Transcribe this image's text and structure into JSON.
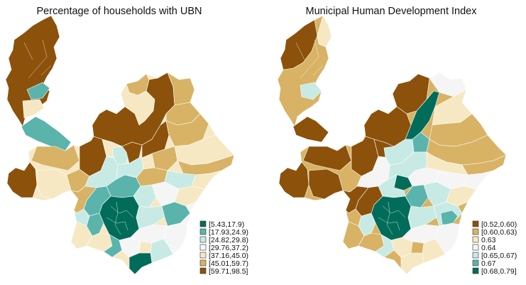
{
  "maps": [
    {
      "title": "Percentage of households with UBN",
      "legend": [
        {
          "label": "[5.43,17.9)",
          "color": "#016c59"
        },
        {
          "label": "[17.93,24.9)",
          "color": "#5ab4ac"
        },
        {
          "label": "[24.82,29.8)",
          "color": "#c7eae5"
        },
        {
          "label": "[29.76,37.2)",
          "color": "#f5f5f5"
        },
        {
          "label": "[37.16,45.0)",
          "color": "#f6e8c3"
        },
        {
          "label": "[45.01,59.7)",
          "color": "#d8b365"
        },
        {
          "label": "[59.71,98.5]",
          "color": "#8c510a"
        }
      ]
    },
    {
      "title": "Municipal Human Development Index",
      "legend": [
        {
          "label": "[0.52,0.60)",
          "color": "#8c510a"
        },
        {
          "label": "[0.60,0.63)",
          "color": "#d8b365"
        },
        {
          "label": "0.63",
          "color": "#f6e8c3"
        },
        {
          "label": "0.64",
          "color": "#f5f5f5"
        },
        {
          "label": "[0.65,0.67)",
          "color": "#c7eae5"
        },
        {
          "label": "0.67",
          "color": "#5ab4ac"
        },
        {
          "label": "[0.68,0.79]",
          "color": "#016c59"
        }
      ]
    }
  ]
}
